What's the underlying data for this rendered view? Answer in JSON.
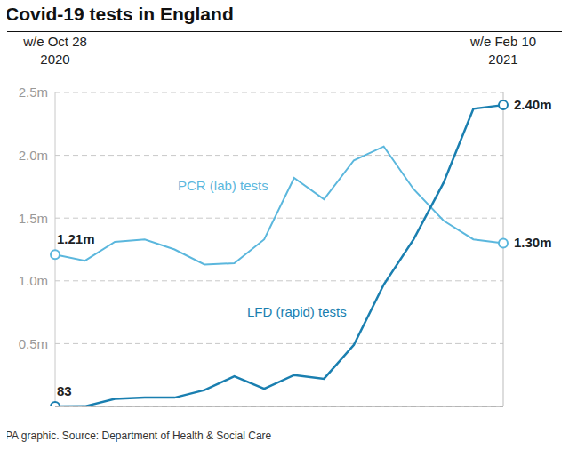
{
  "chart_data": {
    "type": "line",
    "title": "Covid-19 tests in England",
    "caption": "PA graphic. Source: Department of Health & Social Care",
    "categories": [
      "w/e Oct 28 2020",
      null,
      null,
      null,
      null,
      null,
      null,
      null,
      null,
      null,
      null,
      null,
      null,
      null,
      null,
      "w/e Feb 10 2021"
    ],
    "series": [
      {
        "name": "PCR (lab) tests",
        "color": "#5bb7dd",
        "marker": "circle",
        "values": [
          1.21,
          1.16,
          1.31,
          1.33,
          1.25,
          1.13,
          1.14,
          1.33,
          1.82,
          1.65,
          1.96,
          2.07,
          1.73,
          1.48,
          1.33,
          1.3
        ],
        "value_labels": [
          "1.21m",
          null,
          null,
          null,
          null,
          null,
          null,
          null,
          null,
          null,
          null,
          null,
          null,
          null,
          null,
          "1.30m"
        ]
      },
      {
        "name": "LFD (rapid) tests",
        "color": "#1a7fb0",
        "marker": "circle",
        "values": [
          8.3e-05,
          0.001,
          0.06,
          0.07,
          0.07,
          0.13,
          0.24,
          0.14,
          0.25,
          0.22,
          0.49,
          0.97,
          1.33,
          1.78,
          2.37,
          2.4
        ],
        "value_labels": [
          "83",
          null,
          null,
          null,
          null,
          null,
          null,
          null,
          null,
          null,
          null,
          null,
          null,
          null,
          null,
          "2.40m"
        ]
      }
    ],
    "ylim": [
      0,
      2.5
    ],
    "yticks": [
      {
        "value": 0.5,
        "label": "0.5m"
      },
      {
        "value": 1.0,
        "label": "1.0m"
      },
      {
        "value": 1.5,
        "label": "1.5m"
      },
      {
        "value": 2.0,
        "label": "2.0m"
      },
      {
        "value": 2.5,
        "label": "2.5m"
      }
    ],
    "grid": true,
    "data_labels": true
  }
}
